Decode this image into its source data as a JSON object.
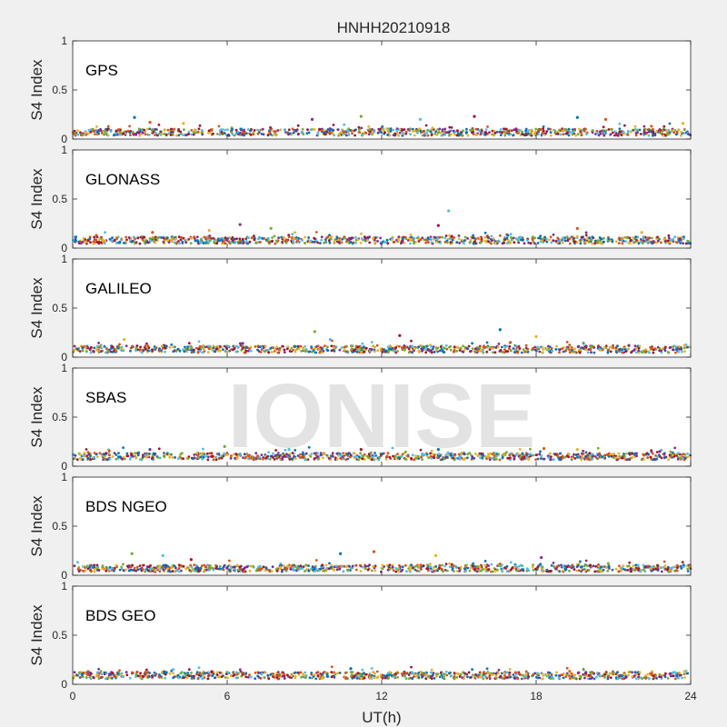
{
  "figure": {
    "title": "HNHH20210918",
    "xlabel": "UT(h)",
    "watermark": "IONISE",
    "background": "#f0f0f0",
    "axes_background": "#ffffff"
  },
  "chart_data": {
    "type": "scatter",
    "title": "HNHH20210918",
    "xlabel": "UT(h)",
    "ylabel": "S4 Index",
    "xlim": [
      0,
      24
    ],
    "ylim": [
      0,
      1
    ],
    "xticks": [
      0,
      6,
      12,
      18,
      24
    ],
    "yticks": [
      0,
      0.5,
      1
    ],
    "grid": false,
    "series_colors": [
      "#0072BD",
      "#D95319",
      "#EDB120",
      "#7E2F8E",
      "#77AC30",
      "#4DBEEE",
      "#A2142F"
    ],
    "panels": [
      {
        "name": "GPS",
        "baseline_s4": 0.07,
        "points": [
          [
            2.4,
            0.22
          ],
          [
            3.0,
            0.17
          ],
          [
            4.3,
            0.16
          ],
          [
            9.3,
            0.2
          ],
          [
            11.2,
            0.23
          ],
          [
            13.5,
            0.2
          ],
          [
            15.6,
            0.23
          ],
          [
            19.6,
            0.22
          ],
          [
            20.7,
            0.2
          ],
          [
            23.7,
            0.16
          ]
        ]
      },
      {
        "name": "GLONASS",
        "baseline_s4": 0.08,
        "points": [
          [
            3.1,
            0.16
          ],
          [
            5.3,
            0.18
          ],
          [
            6.5,
            0.24
          ],
          [
            7.7,
            0.2
          ],
          [
            14.6,
            0.38
          ],
          [
            14.2,
            0.23
          ],
          [
            16.9,
            0.13
          ],
          [
            19.6,
            0.2
          ],
          [
            22.1,
            0.16
          ]
        ]
      },
      {
        "name": "GALILEO",
        "baseline_s4": 0.08,
        "points": [
          [
            2.0,
            0.18
          ],
          [
            6.6,
            0.14
          ],
          [
            9.4,
            0.26
          ],
          [
            10.0,
            0.18
          ],
          [
            12.7,
            0.22
          ],
          [
            16.6,
            0.28
          ],
          [
            17.0,
            0.15
          ],
          [
            18.0,
            0.21
          ],
          [
            21.6,
            0.12
          ]
        ]
      },
      {
        "name": "SBAS",
        "baseline_s4": 0.1,
        "points": [
          [
            3.0,
            0.17
          ],
          [
            5.9,
            0.2
          ],
          [
            8.4,
            0.17
          ],
          [
            11.2,
            0.17
          ],
          [
            14.2,
            0.17
          ],
          [
            18.3,
            0.18
          ],
          [
            19.6,
            0.17
          ],
          [
            22.8,
            0.15
          ]
        ]
      },
      {
        "name": "BDS NGEO",
        "baseline_s4": 0.07,
        "points": [
          [
            2.3,
            0.22
          ],
          [
            3.5,
            0.2
          ],
          [
            4.6,
            0.16
          ],
          [
            10.4,
            0.22
          ],
          [
            11.7,
            0.24
          ],
          [
            14.1,
            0.2
          ],
          [
            18.2,
            0.18
          ],
          [
            20.8,
            0.12
          ]
        ]
      },
      {
        "name": "BDS GEO",
        "baseline_s4": 0.09,
        "points": [
          [
            3.9,
            0.15
          ],
          [
            5.4,
            0.13
          ],
          [
            10.8,
            0.16
          ],
          [
            17.2,
            0.12
          ],
          [
            22.5,
            0.13
          ]
        ]
      }
    ]
  }
}
